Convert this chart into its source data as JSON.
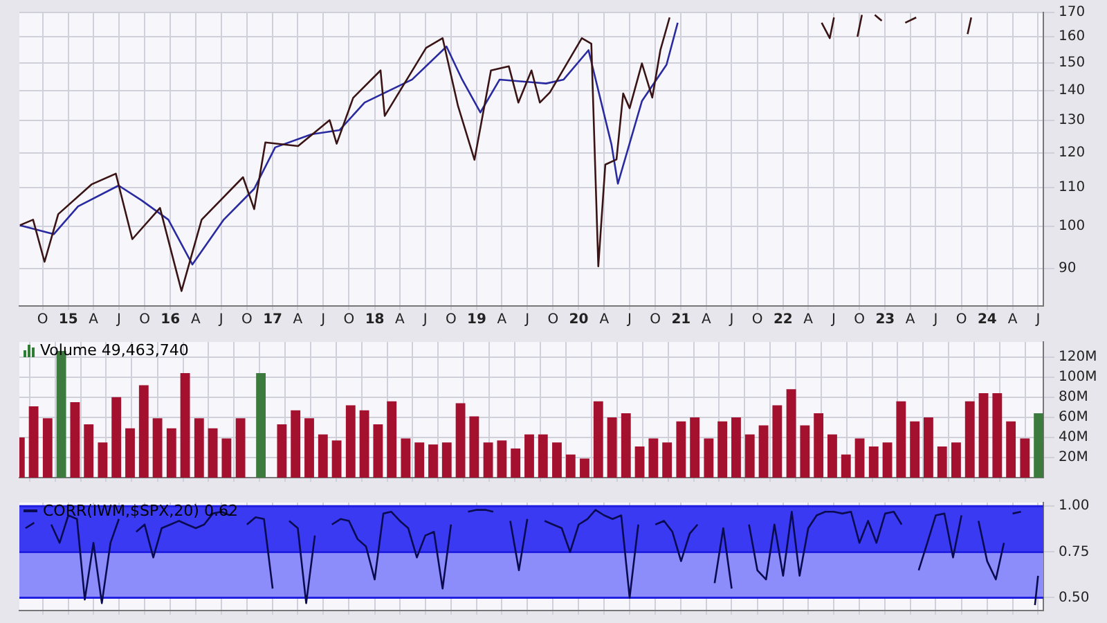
{
  "chart_data": [
    {
      "type": "line",
      "log": true,
      "grid": true,
      "xlim": [
        "2014-07-10",
        "2024-07-20"
      ],
      "ylim": [
        82,
        170
      ],
      "yticks": [
        90,
        100,
        110,
        120,
        130,
        140,
        150,
        160,
        170
      ],
      "xticks": [
        {
          "value": "2014-10",
          "label": "O"
        },
        {
          "value": "2015-01",
          "label": "15"
        },
        {
          "value": "2015-04",
          "label": "A"
        },
        {
          "value": "2015-07",
          "label": "J"
        },
        {
          "value": "2015-10",
          "label": "O"
        },
        {
          "value": "2016-01",
          "label": "16"
        },
        {
          "value": "2016-04",
          "label": "A"
        },
        {
          "value": "2016-07",
          "label": "J"
        },
        {
          "value": "2016-10",
          "label": "O"
        },
        {
          "value": "2017-01",
          "label": "17"
        },
        {
          "value": "2017-04",
          "label": "A"
        },
        {
          "value": "2017-07",
          "label": "J"
        },
        {
          "value": "2017-10",
          "label": "O"
        },
        {
          "value": "2018-01",
          "label": "18"
        },
        {
          "value": "2018-04",
          "label": "A"
        },
        {
          "value": "2018-07",
          "label": "J"
        },
        {
          "value": "2018-10",
          "label": "O"
        },
        {
          "value": "2019-01",
          "label": "19"
        },
        {
          "value": "2019-04",
          "label": "A"
        },
        {
          "value": "2019-07",
          "label": "J"
        },
        {
          "value": "2019-10",
          "label": "O"
        },
        {
          "value": "2020-01",
          "label": "20"
        },
        {
          "value": "2020-04",
          "label": "A"
        },
        {
          "value": "2020-07",
          "label": "J"
        },
        {
          "value": "2020-10",
          "label": "O"
        },
        {
          "value": "2021-01",
          "label": "21"
        },
        {
          "value": "2021-04",
          "label": "A"
        },
        {
          "value": "2021-07",
          "label": "J"
        },
        {
          "value": "2021-10",
          "label": "O"
        },
        {
          "value": "2022-01",
          "label": "22"
        },
        {
          "value": "2022-04",
          "label": "A"
        },
        {
          "value": "2022-07",
          "label": "J"
        },
        {
          "value": "2022-10",
          "label": "O"
        },
        {
          "value": "2023-01",
          "label": "23"
        },
        {
          "value": "2023-04",
          "label": "A"
        },
        {
          "value": "2023-07",
          "label": "J"
        },
        {
          "value": "2023-10",
          "label": "O"
        },
        {
          "value": "2024-01",
          "label": "24"
        },
        {
          "value": "2024-04",
          "label": "A"
        },
        {
          "value": "2024-07",
          "label": "J"
        }
      ],
      "series": [
        {
          "color": "#3a1414",
          "x": [
            "2014-07-12",
            "2014-08-28",
            "2014-10-08",
            "2014-11-26",
            "2015-03-25",
            "2015-06-20",
            "2015-08-18",
            "2015-11-25",
            "2016-02-10",
            "2016-04-22",
            "2016-09-17",
            "2016-10-27",
            "2016-12-06",
            "2017-04-02",
            "2017-07-24",
            "2017-08-18",
            "2017-10-16",
            "2018-01-22",
            "2018-02-06",
            "2018-07-04",
            "2018-09-01",
            "2018-10-26",
            "2018-12-24",
            "2019-02-21",
            "2019-04-26",
            "2019-05-30",
            "2019-07-16",
            "2019-08-15",
            "2019-09-20",
            "2020-01-12",
            "2020-02-15",
            "2020-03-11",
            "2020-04-05",
            "2020-05-15",
            "2020-06-08",
            "2020-07-01",
            "2020-08-14",
            "2020-09-20",
            "2020-10-19",
            "2020-11-21",
            "2021-06-01",
            "2022-05-19",
            "2022-06-17",
            "2022-07-02",
            "2022-08-15",
            "2022-09-24",
            "2022-10-10",
            "2022-11-15",
            "2022-11-25",
            "2022-12-20",
            "2023-02-01",
            "2023-03-14",
            "2023-04-22",
            "2023-07-01",
            "2023-10-23",
            "2023-11-05"
          ],
          "values": [
            100.2,
            101.6,
            91.5,
            103.0,
            110.9,
            113.9,
            96.8,
            104.6,
            85.1,
            101.6,
            112.9,
            104.3,
            123.1,
            122.0,
            130.1,
            122.7,
            137.5,
            147.2,
            131.5,
            155.7,
            159.5,
            134.8,
            117.9,
            147.2,
            148.7,
            135.9,
            147.2,
            135.9,
            139.4,
            159.5,
            157.3,
            90.5,
            116.5,
            118.0,
            139.0,
            134.0,
            149.8,
            137.6,
            154.8,
            167.9,
            null,
            165.7,
            159.5,
            167.9,
            null,
            160.1,
            169.0,
            null,
            169.0,
            166.5,
            null,
            165.7,
            167.9,
            null,
            161.1,
            167.9
          ]
        },
        {
          "color": "#2a2aa0",
          "x": [
            "2014-07-12",
            "2014-11-10",
            "2015-02-05",
            "2015-06-30",
            "2015-09-20",
            "2015-12-25",
            "2016-03-20",
            "2016-07-10",
            "2016-10-27",
            "2017-01-10",
            "2017-05-20",
            "2017-08-28",
            "2017-11-26",
            "2018-05-15",
            "2018-09-15",
            "2018-11-10",
            "2019-01-14",
            "2019-03-24",
            "2019-09-06",
            "2019-11-08",
            "2020-02-05",
            "2020-04-27",
            "2020-05-20",
            "2020-08-14",
            "2020-11-10",
            "2020-12-20"
          ],
          "values": [
            100.2,
            98.0,
            105.0,
            110.6,
            106.6,
            101.6,
            90.9,
            101.6,
            109.7,
            121.6,
            125.6,
            126.9,
            135.9,
            143.9,
            156.2,
            143.9,
            132.6,
            143.9,
            142.5,
            143.9,
            154.8,
            122.5,
            111.1,
            136.4,
            149.3,
            165.7
          ]
        }
      ]
    },
    {
      "type": "bar",
      "title": "Volume 49,463,740",
      "grid": true,
      "tick_labels": "y",
      "xlim": [
        "2014-07-10",
        "2024-07-20"
      ],
      "ylim": [
        0,
        135
      ],
      "yticks": [
        {
          "value": 20,
          "label": "20M"
        },
        {
          "value": 40,
          "label": "40M"
        },
        {
          "value": 60,
          "label": "60M"
        },
        {
          "value": 80,
          "label": "80M"
        },
        {
          "value": 100,
          "label": "100M"
        },
        {
          "value": 120,
          "label": "120M"
        }
      ],
      "xticks": [
        {
          "value": "2014-10",
          "label": null
        },
        {
          "value": "2015-01",
          "label": null
        },
        {
          "value": "2015-04",
          "label": null
        },
        {
          "value": "2015-07",
          "label": null
        },
        {
          "value": "2015-10",
          "label": null
        },
        {
          "value": "2016-01",
          "label": null
        },
        {
          "value": "2016-04",
          "label": null
        },
        {
          "value": "2016-07",
          "label": null
        },
        {
          "value": "2016-10",
          "label": null
        },
        {
          "value": "2017-01",
          "label": null
        },
        {
          "value": "2017-04",
          "label": null
        },
        {
          "value": "2017-07",
          "label": null
        },
        {
          "value": "2017-10",
          "label": null
        },
        {
          "value": "2018-01",
          "label": null
        },
        {
          "value": "2018-04",
          "label": null
        },
        {
          "value": "2018-07",
          "label": null
        },
        {
          "value": "2018-10",
          "label": null
        },
        {
          "value": "2019-01",
          "label": null
        },
        {
          "value": "2019-04",
          "label": null
        },
        {
          "value": "2019-07",
          "label": null
        },
        {
          "value": "2019-10",
          "label": null
        },
        {
          "value": "2020-01",
          "label": null
        },
        {
          "value": "2020-04",
          "label": null
        },
        {
          "value": "2020-07",
          "label": null
        },
        {
          "value": "2020-10",
          "label": null
        },
        {
          "value": "2021-01",
          "label": null
        },
        {
          "value": "2021-04",
          "label": null
        },
        {
          "value": "2021-07",
          "label": null
        },
        {
          "value": "2021-10",
          "label": null
        },
        {
          "value": "2022-01",
          "label": null
        },
        {
          "value": "2022-04",
          "label": null
        },
        {
          "value": "2022-07",
          "label": null
        },
        {
          "value": "2022-10",
          "label": null
        },
        {
          "value": "2023-01",
          "label": null
        },
        {
          "value": "2023-04",
          "label": null
        },
        {
          "value": "2023-07",
          "label": null
        },
        {
          "value": "2023-10",
          "label": null
        },
        {
          "value": "2024-01",
          "label": null
        },
        {
          "value": "2024-04",
          "label": null
        },
        {
          "value": "2024-07",
          "label": null
        }
      ],
      "x": [
        "2014-07-12",
        "2014-08-30",
        "2014-10-19",
        "2014-12-07",
        "2015-01-25",
        "2015-03-15",
        "2015-05-04",
        "2015-06-22",
        "2015-08-10",
        "2015-09-28",
        "2015-11-16",
        "2016-01-05",
        "2016-02-23",
        "2016-04-13",
        "2016-06-01",
        "2016-07-20",
        "2016-09-08",
        "2016-11-20",
        "2017-02-03",
        "2017-03-24",
        "2017-05-12",
        "2017-06-30",
        "2017-08-18",
        "2017-10-07",
        "2017-11-25",
        "2018-01-13",
        "2018-03-03",
        "2018-04-22",
        "2018-06-10",
        "2018-07-29",
        "2018-09-16",
        "2018-11-04",
        "2018-12-23",
        "2019-02-11",
        "2019-04-01",
        "2019-05-20",
        "2019-07-08",
        "2019-08-26",
        "2019-10-15",
        "2019-12-03",
        "2020-01-22",
        "2020-03-11",
        "2020-04-29",
        "2020-06-18",
        "2020-08-06",
        "2020-09-24",
        "2020-11-12",
        "2021-01-01",
        "2021-02-19",
        "2021-04-10",
        "2021-05-29",
        "2021-07-17",
        "2021-09-04",
        "2021-10-23",
        "2021-12-11",
        "2022-01-30",
        "2022-03-20",
        "2022-05-08",
        "2022-06-26",
        "2022-08-14",
        "2022-10-02",
        "2022-11-21",
        "2023-01-09",
        "2023-02-27",
        "2023-04-17",
        "2023-06-05",
        "2023-07-24",
        "2023-09-12",
        "2023-10-31",
        "2023-12-19",
        "2024-02-06",
        "2024-03-26",
        "2024-05-15",
        "2024-07-03"
      ],
      "values": [
        40,
        71,
        59,
        126,
        75,
        53,
        35,
        80,
        49,
        92,
        59,
        49,
        104,
        59,
        49,
        39,
        59,
        104,
        53,
        67,
        59,
        43,
        37,
        72,
        67,
        53,
        76,
        39,
        35,
        33,
        35,
        74,
        61,
        35,
        37,
        29,
        43,
        43,
        35,
        23,
        19,
        76,
        60,
        64,
        31,
        39,
        35,
        56,
        60,
        39,
        56,
        60,
        43,
        52,
        72,
        88,
        52,
        64,
        43,
        23,
        39,
        31,
        35,
        76,
        56,
        60,
        31,
        35,
        76,
        84,
        84,
        56,
        39,
        64
      ],
      "colors": [
        "#a3112e",
        "#a3112e",
        "#a3112e",
        "#3d7a3d",
        "#a3112e",
        "#a3112e",
        "#a3112e",
        "#a3112e",
        "#a3112e",
        "#a3112e",
        "#a3112e",
        "#a3112e",
        "#a3112e",
        "#a3112e",
        "#a3112e",
        "#a3112e",
        "#a3112e",
        "#3d7a3d",
        "#a3112e",
        "#a3112e",
        "#a3112e",
        "#a3112e",
        "#a3112e",
        "#a3112e",
        "#a3112e",
        "#a3112e",
        "#a3112e",
        "#a3112e",
        "#a3112e",
        "#a3112e",
        "#a3112e",
        "#a3112e",
        "#a3112e",
        "#a3112e",
        "#a3112e",
        "#a3112e",
        "#a3112e",
        "#a3112e",
        "#a3112e",
        "#a3112e",
        "#a3112e",
        "#a3112e",
        "#a3112e",
        "#a3112e",
        "#a3112e",
        "#a3112e",
        "#a3112e",
        "#a3112e",
        "#a3112e",
        "#a3112e",
        "#a3112e",
        "#a3112e",
        "#a3112e",
        "#a3112e",
        "#a3112e",
        "#a3112e",
        "#a3112e",
        "#a3112e",
        "#a3112e",
        "#a3112e",
        "#a3112e",
        "#a3112e",
        "#a3112e",
        "#a3112e",
        "#a3112e",
        "#a3112e",
        "#a3112e",
        "#a3112e",
        "#a3112e",
        "#a3112e",
        "#a3112e",
        "#a3112e",
        "#a3112e",
        "#3d7a3d"
      ]
    },
    {
      "type": "line",
      "title": "CORR(IWM,$SPX,20) 0.62",
      "grid": true,
      "tick_labels": "y",
      "xlim": [
        "2014-07-10",
        "2024-07-20"
      ],
      "ylim": [
        0.43,
        1.02
      ],
      "yticks": [
        {
          "value": 0.5,
          "label": "0.50"
        },
        {
          "value": 0.75,
          "label": "0.75"
        },
        {
          "value": 1,
          "label": "1.00"
        }
      ],
      "bands": [
        {
          "axis": "y",
          "from": 0.75,
          "to": 1.0,
          "color": "#3a3af2"
        },
        {
          "axis": "y",
          "from": 0.5,
          "to": 0.75,
          "color": "#8c8cfa"
        }
      ],
      "xticks": [
        {
          "value": "2014-10",
          "label": null
        },
        {
          "value": "2015-01",
          "label": null
        },
        {
          "value": "2015-04",
          "label": null
        },
        {
          "value": "2015-07",
          "label": null
        },
        {
          "value": "2015-10",
          "label": null
        },
        {
          "value": "2016-01",
          "label": null
        },
        {
          "value": "2016-04",
          "label": null
        },
        {
          "value": "2016-07",
          "label": null
        },
        {
          "value": "2016-10",
          "label": null
        },
        {
          "value": "2017-01",
          "label": null
        },
        {
          "value": "2017-04",
          "label": null
        },
        {
          "value": "2017-07",
          "label": null
        },
        {
          "value": "2017-10",
          "label": null
        },
        {
          "value": "2018-01",
          "label": null
        },
        {
          "value": "2018-04",
          "label": null
        },
        {
          "value": "2018-07",
          "label": null
        },
        {
          "value": "2018-10",
          "label": null
        },
        {
          "value": "2019-01",
          "label": null
        },
        {
          "value": "2019-04",
          "label": null
        },
        {
          "value": "2019-07",
          "label": null
        },
        {
          "value": "2019-10",
          "label": null
        },
        {
          "value": "2020-01",
          "label": null
        },
        {
          "value": "2020-04",
          "label": null
        },
        {
          "value": "2020-07",
          "label": null
        },
        {
          "value": "2020-10",
          "label": null
        },
        {
          "value": "2021-01",
          "label": null
        },
        {
          "value": "2021-04",
          "label": null
        },
        {
          "value": "2021-07",
          "label": null
        },
        {
          "value": "2021-10",
          "label": null
        },
        {
          "value": "2022-01",
          "label": null
        },
        {
          "value": "2022-04",
          "label": null
        },
        {
          "value": "2022-07",
          "label": null
        },
        {
          "value": "2022-10",
          "label": null
        },
        {
          "value": "2023-01",
          "label": null
        },
        {
          "value": "2023-04",
          "label": null
        },
        {
          "value": "2023-07",
          "label": null
        },
        {
          "value": "2023-10",
          "label": null
        },
        {
          "value": "2024-01",
          "label": null
        },
        {
          "value": "2024-04",
          "label": null
        },
        {
          "value": "2024-07",
          "label": null
        }
      ],
      "series": [
        {
          "color": "#0a0a50",
          "x": [
            "2014-08",
            "2014-09",
            "2014-10",
            "2014-11",
            "2014-12",
            "2015-01",
            "2015-02",
            "2015-03",
            "2015-04",
            "2015-05",
            "2015-06",
            "2015-07",
            "2015-08",
            "2015-09",
            "2015-10",
            "2015-11",
            "2015-12",
            "2016-01",
            "2016-02",
            "2016-03",
            "2016-04",
            "2016-05",
            "2016-06",
            "2016-07",
            "2016-08",
            "2016-09",
            "2016-10",
            "2016-11",
            "2016-12",
            "2017-01",
            "2017-02",
            "2017-03",
            "2017-04",
            "2017-05",
            "2017-06",
            "2017-07",
            "2017-08",
            "2017-09",
            "2017-10",
            "2017-11",
            "2017-12",
            "2018-01",
            "2018-02",
            "2018-03",
            "2018-04",
            "2018-05",
            "2018-06",
            "2018-07",
            "2018-08",
            "2018-09",
            "2018-10",
            "2018-11",
            "2018-12",
            "2019-01",
            "2019-02",
            "2019-03",
            "2019-04",
            "2019-05",
            "2019-06",
            "2019-07",
            "2019-08",
            "2019-09",
            "2019-10",
            "2019-11",
            "2019-12",
            "2020-01",
            "2020-02",
            "2020-03",
            "2020-04",
            "2020-05",
            "2020-06",
            "2020-07",
            "2020-08",
            "2020-09",
            "2020-10",
            "2020-11",
            "2020-12",
            "2021-01",
            "2021-02",
            "2021-03",
            "2021-04",
            "2021-05",
            "2021-06",
            "2021-07",
            "2021-08",
            "2021-09",
            "2021-10",
            "2021-11",
            "2021-12",
            "2022-01",
            "2022-02",
            "2022-03",
            "2022-04",
            "2022-05",
            "2022-06",
            "2022-07",
            "2022-08",
            "2022-09",
            "2022-10",
            "2022-11",
            "2022-12",
            "2023-01",
            "2023-02",
            "2023-03",
            "2023-04",
            "2023-05",
            "2023-06",
            "2023-07",
            "2023-08",
            "2023-09",
            "2023-10",
            "2023-11",
            "2023-12",
            "2024-01",
            "2024-02",
            "2024-03",
            "2024-03-20",
            "2024-04",
            "2024-05",
            "2024-06",
            "2024-06-20",
            "2024-07"
          ],
          "values": [
            0.88,
            0.91,
            null,
            0.9,
            0.8,
            0.95,
            0.93,
            0.49,
            0.8,
            0.47,
            0.8,
            0.93,
            null,
            0.86,
            0.9,
            0.72,
            0.88,
            0.9,
            0.92,
            0.9,
            0.88,
            0.9,
            0.96,
            0.97,
            0.95,
            null,
            0.9,
            0.94,
            0.93,
            0.55,
            null,
            0.92,
            0.88,
            0.47,
            0.84,
            null,
            0.9,
            0.93,
            0.92,
            0.82,
            0.78,
            0.6,
            0.96,
            0.97,
            0.92,
            0.88,
            0.72,
            0.84,
            0.86,
            0.55,
            0.9,
            null,
            0.97,
            0.98,
            0.98,
            0.97,
            null,
            0.92,
            0.65,
            0.93,
            null,
            0.92,
            0.9,
            0.88,
            0.75,
            0.9,
            0.93,
            0.98,
            0.95,
            0.93,
            0.95,
            0.5,
            0.9,
            null,
            0.9,
            0.92,
            0.86,
            0.7,
            0.85,
            0.9,
            null,
            0.58,
            0.88,
            0.55,
            null,
            0.9,
            0.65,
            0.6,
            0.9,
            0.62,
            0.97,
            0.62,
            0.88,
            0.95,
            0.97,
            0.97,
            0.96,
            0.97,
            0.8,
            0.92,
            0.8,
            0.96,
            0.97,
            0.9,
            null,
            0.65,
            0.8,
            0.95,
            0.96,
            0.72,
            0.95,
            null,
            0.92,
            0.7,
            0.6,
            0.8,
            null,
            0.96,
            0.97,
            null,
            0.46,
            0.62
          ]
        }
      ]
    }
  ]
}
